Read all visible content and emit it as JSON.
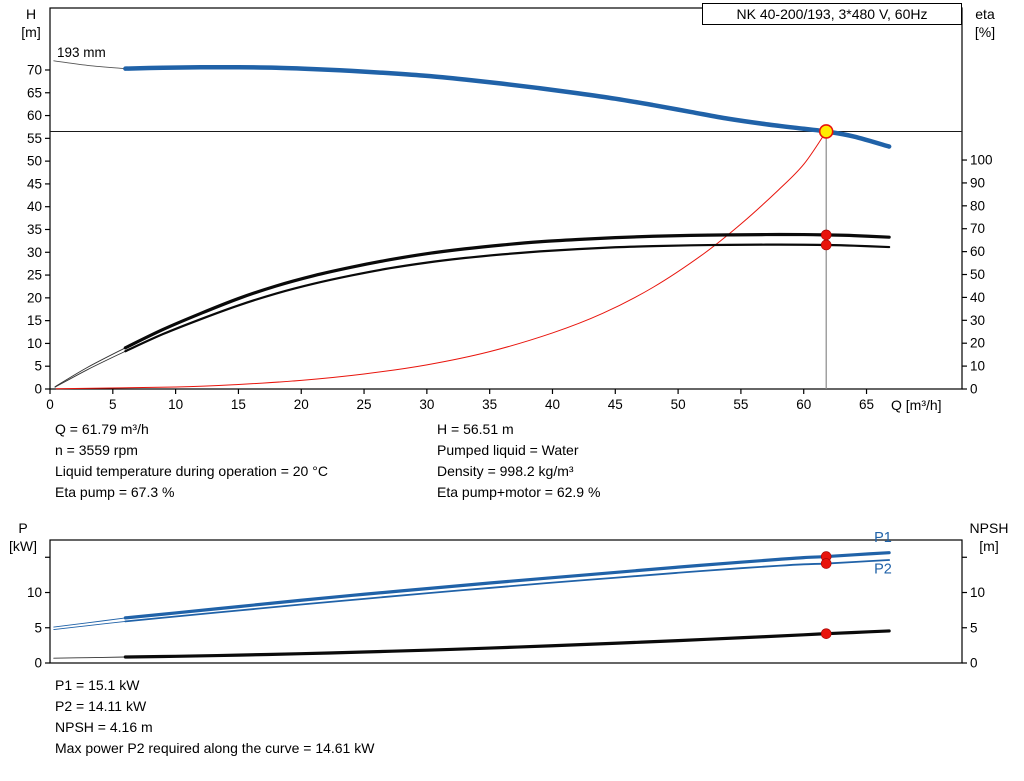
{
  "title_box": "NK 40-200/193, 3*480 V, 60Hz",
  "impeller": "193 mm",
  "axis_headers": {
    "h": "H",
    "h_unit": "[m]",
    "eta": "eta",
    "eta_unit": "[%]",
    "q": "Q [m³/h]",
    "p": "P",
    "p_unit": "[kW]",
    "npsh": "NPSH",
    "npsh_unit": "[m]"
  },
  "operating_info": {
    "q": "Q = 61.79 m³/h",
    "n": "n = 3559 rpm",
    "liquid_temp": "Liquid temperature during operation = 20 °C",
    "eta_pump": "Eta pump = 67.3 %",
    "h": "H = 56.51 m",
    "pumped_liquid": "Pumped liquid = Water",
    "density": "Density = 998.2 kg/m³",
    "eta_pump_motor": "Eta pump+motor = 62.9 %"
  },
  "power_info": {
    "p1": "P1 = 15.1 kW",
    "p2": "P2 = 14.11 kW",
    "npsh": "NPSH = 4.16 m",
    "max_power": "Max power P2 required along the curve = 14.61 kW"
  },
  "colors": {
    "curve_blue": "#2062a8",
    "curve_black": "#0a0a0a",
    "red": "#e8140c",
    "yellow": "#ffec00",
    "guide_gray": "#8a8a8a"
  },
  "chart_data": [
    {
      "type": "line",
      "id": "hq-chart",
      "title": "NK 40-200/193, 3*480 V, 60Hz",
      "x_label": "Q [m³/h]",
      "y_left_label": "H [m]",
      "y_right_label": "eta [%]",
      "x_range": [
        0,
        72.6
      ],
      "y_left_range": [
        0,
        83.6
      ],
      "y_right_range": [
        0,
        166.4
      ],
      "x_ticks": [
        0,
        5,
        10,
        15,
        20,
        25,
        30,
        35,
        40,
        45,
        50,
        55,
        60,
        65
      ],
      "x_tick_labels": [
        0,
        5,
        10,
        15,
        20,
        25,
        30,
        35,
        40,
        45,
        50,
        55,
        60,
        65
      ],
      "y_left_ticks": [
        0,
        5,
        10,
        15,
        20,
        25,
        30,
        35,
        40,
        45,
        50,
        55,
        60,
        65,
        70
      ],
      "y_left_tick_labels": [
        0,
        5,
        10,
        15,
        20,
        25,
        30,
        35,
        40,
        45,
        50,
        55,
        60,
        65,
        70
      ],
      "y_right_ticks": [
        0,
        10,
        20,
        30,
        40,
        50,
        60,
        70,
        80,
        90,
        100
      ],
      "y_right_tick_labels": [
        0,
        10,
        20,
        30,
        40,
        50,
        60,
        70,
        80,
        90,
        100
      ],
      "operating_point": {
        "q": 61.79,
        "h": 56.51,
        "eta_pump": 67.3,
        "eta_pump_motor": 62.9
      },
      "series": [
        {
          "name": "h-curve-leadin",
          "axis": "left",
          "color": "#555555",
          "width": 0.9,
          "points": [
            [
              0.3,
              72.0
            ],
            [
              3,
              71.0
            ],
            [
              6,
              70.3
            ]
          ]
        },
        {
          "name": "eta-pump-leadin",
          "axis": "right",
          "color": "#333333",
          "width": 0.9,
          "points": [
            [
              0.4,
              1.0
            ],
            [
              3,
              9.5
            ],
            [
              6,
              18
            ]
          ]
        },
        {
          "name": "eta-pump-motor-leadin",
          "axis": "right",
          "color": "#333333",
          "width": 0.9,
          "points": [
            [
              0.4,
              0.8
            ],
            [
              3,
              8.5
            ],
            [
              6,
              16.5
            ]
          ]
        },
        {
          "name": "system-curve",
          "axis": "left",
          "color": "#e8140c",
          "width": 1,
          "points": [
            [
              0.5,
              0.05
            ],
            [
              10,
              0.45
            ],
            [
              15,
              1.0
            ],
            [
              20,
              1.9
            ],
            [
              25,
              3.3
            ],
            [
              30,
              5.3
            ],
            [
              35,
              8.2
            ],
            [
              40,
              12.3
            ],
            [
              44,
              16.6
            ],
            [
              48,
              22.3
            ],
            [
              52,
              29.6
            ],
            [
              55,
              36.2
            ],
            [
              58,
              43.7
            ],
            [
              60,
              49.3
            ],
            [
              61.79,
              56.51
            ]
          ]
        },
        {
          "name": "eta-pump-curve",
          "axis": "right",
          "color": "#0a0a0a",
          "width": 3.2,
          "points": [
            [
              6,
              18
            ],
            [
              9,
              26
            ],
            [
              12,
              33
            ],
            [
              15,
              39.5
            ],
            [
              18,
              45
            ],
            [
              21,
              49.5
            ],
            [
              24,
              53.2
            ],
            [
              27,
              56.4
            ],
            [
              30,
              59.1
            ],
            [
              33,
              61.2
            ],
            [
              36,
              62.9
            ],
            [
              39,
              64.3
            ],
            [
              42,
              65.3
            ],
            [
              45,
              66.1
            ],
            [
              48,
              66.7
            ],
            [
              51,
              67.1
            ],
            [
              54,
              67.3
            ],
            [
              57,
              67.45
            ],
            [
              60,
              67.45
            ],
            [
              61.79,
              67.3
            ],
            [
              64,
              67.0
            ],
            [
              66.8,
              66.3
            ]
          ]
        },
        {
          "name": "eta-pump-motor-curve",
          "axis": "right",
          "color": "#0a0a0a",
          "width": 2.2,
          "points": [
            [
              6,
              16.5
            ],
            [
              9,
              24
            ],
            [
              12,
              30.5
            ],
            [
              15,
              36.5
            ],
            [
              18,
              41.7
            ],
            [
              21,
              46
            ],
            [
              24,
              49.6
            ],
            [
              27,
              52.7
            ],
            [
              30,
              55.2
            ],
            [
              33,
              57.2
            ],
            [
              36,
              58.8
            ],
            [
              39,
              60.1
            ],
            [
              42,
              61.1
            ],
            [
              45,
              61.9
            ],
            [
              48,
              62.4
            ],
            [
              51,
              62.75
            ],
            [
              54,
              62.95
            ],
            [
              57,
              63.05
            ],
            [
              60,
              63.0
            ],
            [
              61.79,
              62.9
            ],
            [
              64,
              62.6
            ],
            [
              66.8,
              62.0
            ]
          ]
        },
        {
          "name": "h-curve",
          "axis": "left",
          "color": "#2062a8",
          "width": 4.5,
          "points": [
            [
              6,
              70.3
            ],
            [
              9,
              70.5
            ],
            [
              12,
              70.6
            ],
            [
              15,
              70.6
            ],
            [
              18,
              70.5
            ],
            [
              21,
              70.2
            ],
            [
              24,
              69.8
            ],
            [
              27,
              69.3
            ],
            [
              30,
              68.7
            ],
            [
              33,
              67.9
            ],
            [
              36,
              67.0
            ],
            [
              39,
              66.0
            ],
            [
              42,
              64.9
            ],
            [
              45,
              63.7
            ],
            [
              48,
              62.3
            ],
            [
              51,
              60.8
            ],
            [
              54,
              59.3
            ],
            [
              57,
              58.1
            ],
            [
              60,
              57.1
            ],
            [
              61.79,
              56.51
            ],
            [
              64,
              55.4
            ],
            [
              66.8,
              53.2
            ]
          ]
        }
      ],
      "guide_lines": [
        {
          "name": "head-guide-line",
          "type": "h",
          "axis": "left",
          "value": 56.51,
          "color": "#1a1a1a",
          "width": 1
        },
        {
          "name": "flow-guide-line",
          "type": "v",
          "axis": "left",
          "value": 61.79,
          "from": 56.51,
          "to": 0,
          "color": "#8a8a8a",
          "width": 1.2
        }
      ],
      "markers": [
        {
          "name": "eta-pump-point",
          "axis": "right",
          "q": 61.79,
          "v": 67.3,
          "r": 5,
          "fill": "#e8140c",
          "stroke": "#a00000",
          "sw": 0.6
        },
        {
          "name": "eta-pump-motor-point",
          "axis": "right",
          "q": 61.79,
          "v": 62.9,
          "r": 5,
          "fill": "#e8140c",
          "stroke": "#a00000",
          "sw": 0.6
        },
        {
          "name": "duty-point",
          "axis": "left",
          "q": 61.79,
          "v": 56.51,
          "r": 6.5,
          "fill": "#ffec00",
          "stroke": "#e8140c",
          "sw": 1.6
        }
      ],
      "series_labels": []
    },
    {
      "type": "line",
      "id": "power-npsh-chart",
      "y_left_label": "P [kW]",
      "y_right_label": "NPSH [m]",
      "x_range": [
        0,
        72.6
      ],
      "y_left_range": [
        0,
        17.45
      ],
      "y_right_range": [
        0,
        17.45
      ],
      "x_ticks": [],
      "x_tick_labels": [],
      "y_left_ticks": [
        0,
        5,
        10,
        15
      ],
      "y_left_tick_labels": [
        0,
        5,
        10
      ],
      "y_right_ticks": [
        0,
        5,
        10,
        15
      ],
      "y_right_tick_labels": [
        0,
        5,
        10
      ],
      "operating_point": {
        "q": 61.79,
        "p1": 15.1,
        "p2": 14.11,
        "npsh": 4.16
      },
      "series": [
        {
          "name": "p1-leadin",
          "axis": "left",
          "color": "#2062a8",
          "width": 0.9,
          "points": [
            [
              0.3,
              5.1
            ],
            [
              3,
              5.7
            ],
            [
              6,
              6.4
            ]
          ]
        },
        {
          "name": "p2-leadin",
          "axis": "left",
          "color": "#2062a8",
          "width": 0.9,
          "points": [
            [
              0.3,
              4.75
            ],
            [
              3,
              5.3
            ],
            [
              6,
              5.9
            ]
          ]
        },
        {
          "name": "npsh-leadin",
          "axis": "right",
          "color": "#333333",
          "width": 0.9,
          "points": [
            [
              0.3,
              0.68
            ],
            [
              3,
              0.76
            ],
            [
              6,
              0.85
            ]
          ]
        },
        {
          "name": "p1-curve",
          "axis": "left",
          "color": "#2062a8",
          "width": 3.2,
          "points": [
            [
              6,
              6.4
            ],
            [
              10,
              7.1
            ],
            [
              15,
              8.0
            ],
            [
              20,
              8.9
            ],
            [
              25,
              9.75
            ],
            [
              30,
              10.55
            ],
            [
              35,
              11.35
            ],
            [
              40,
              12.1
            ],
            [
              45,
              12.85
            ],
            [
              50,
              13.6
            ],
            [
              55,
              14.3
            ],
            [
              58,
              14.7
            ],
            [
              60,
              14.95
            ],
            [
              61.79,
              15.1
            ],
            [
              64,
              15.35
            ],
            [
              66.8,
              15.65
            ]
          ]
        },
        {
          "name": "p2-curve",
          "axis": "left",
          "color": "#2062a8",
          "width": 1.8,
          "points": [
            [
              6,
              5.9
            ],
            [
              10,
              6.6
            ],
            [
              15,
              7.45
            ],
            [
              20,
              8.3
            ],
            [
              25,
              9.1
            ],
            [
              30,
              9.9
            ],
            [
              35,
              10.65
            ],
            [
              40,
              11.4
            ],
            [
              45,
              12.1
            ],
            [
              50,
              12.8
            ],
            [
              55,
              13.45
            ],
            [
              58,
              13.8
            ],
            [
              60,
              14.0
            ],
            [
              61.79,
              14.11
            ],
            [
              64,
              14.33
            ],
            [
              66.8,
              14.61
            ]
          ]
        },
        {
          "name": "npsh-curve",
          "axis": "right",
          "color": "#0a0a0a",
          "width": 3.2,
          "points": [
            [
              6,
              0.85
            ],
            [
              10,
              0.95
            ],
            [
              15,
              1.12
            ],
            [
              20,
              1.32
            ],
            [
              25,
              1.56
            ],
            [
              30,
              1.82
            ],
            [
              35,
              2.12
            ],
            [
              40,
              2.45
            ],
            [
              45,
              2.8
            ],
            [
              50,
              3.18
            ],
            [
              55,
              3.58
            ],
            [
              60,
              4.0
            ],
            [
              61.79,
              4.16
            ],
            [
              64,
              4.33
            ],
            [
              66.8,
              4.55
            ]
          ]
        }
      ],
      "guide_lines": [],
      "markers": [
        {
          "name": "p1-point",
          "axis": "left",
          "q": 61.79,
          "v": 15.1,
          "r": 5,
          "fill": "#e8140c",
          "stroke": "#a00000",
          "sw": 0.6
        },
        {
          "name": "p2-point",
          "axis": "left",
          "q": 61.79,
          "v": 14.11,
          "r": 5,
          "fill": "#e8140c",
          "stroke": "#a00000",
          "sw": 0.6
        },
        {
          "name": "npsh-point",
          "axis": "right",
          "q": 61.79,
          "v": 4.16,
          "r": 5,
          "fill": "#e8140c",
          "stroke": "#a00000",
          "sw": 0.6
        }
      ],
      "series_labels": [
        {
          "name": "p1-curve-label",
          "text": "P1",
          "q": 65.6,
          "v": 17.9,
          "color": "#2062a8"
        },
        {
          "name": "p2-curve-label",
          "text": "P2",
          "q": 65.6,
          "v": 13.4,
          "color": "#2062a8"
        }
      ]
    }
  ]
}
